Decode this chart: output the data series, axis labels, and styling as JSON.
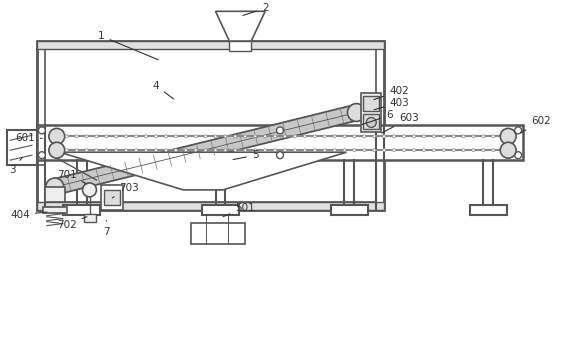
{
  "bg_color": "#ffffff",
  "lc": "#555555",
  "dc": "#333333",
  "figsize": [
    5.61,
    3.55
  ],
  "dpi": 100
}
